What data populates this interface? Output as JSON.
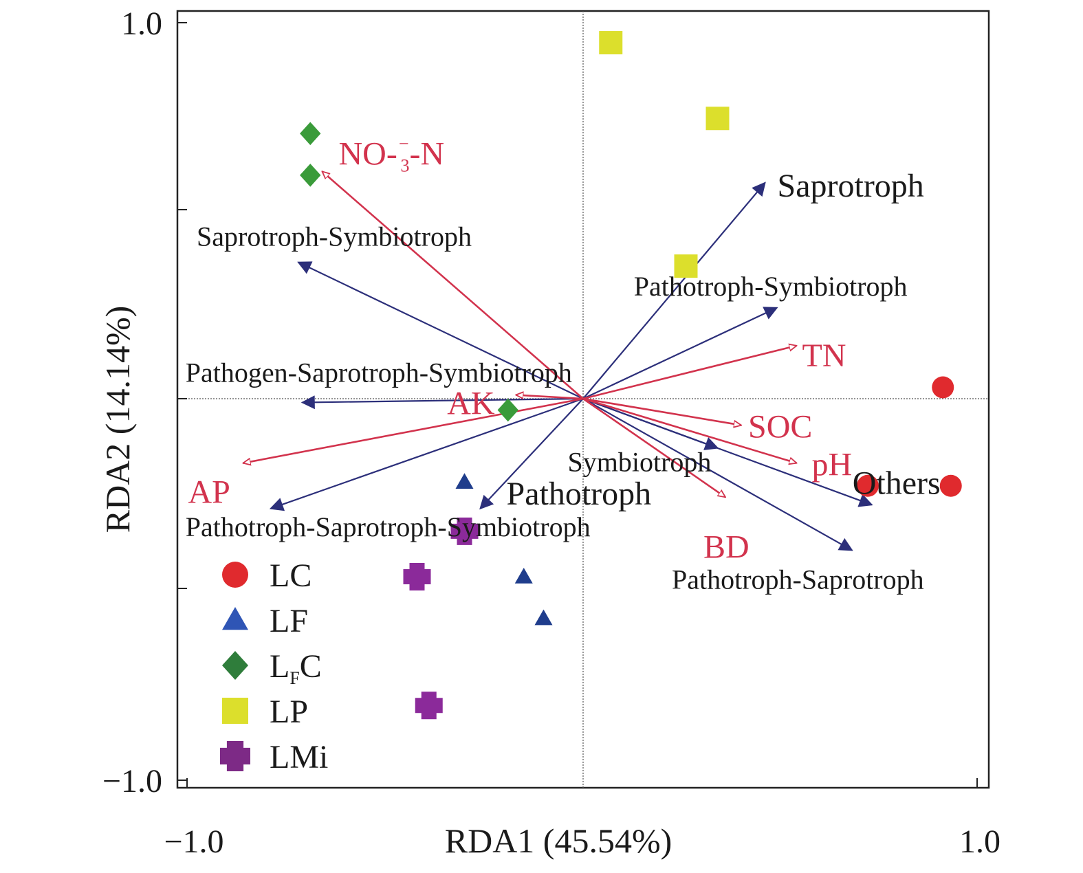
{
  "chart_data": {
    "type": "scatter",
    "subtype": "RDA biplot",
    "xlabel": "RDA1 (45.54%)",
    "ylabel": "RDA2 (14.14%)",
    "xlim": [
      -1.0,
      1.0
    ],
    "ylim": [
      -1.0,
      1.0
    ],
    "x_tick_labels": [
      "−1.0",
      "1.0"
    ],
    "y_tick_labels": [
      "1.0",
      "−1.0"
    ],
    "grid": false,
    "zero_lines": true,
    "legend_position": "bottom-left",
    "series": [
      {
        "name": "LC",
        "marker": "circle",
        "color": "#e02a2e",
        "points": [
          [
            0.91,
            0.03
          ],
          [
            0.72,
            -0.23
          ],
          [
            0.93,
            -0.23
          ]
        ]
      },
      {
        "name": "LF",
        "marker": "triangle",
        "color": "#1f3d8c",
        "points": [
          [
            -0.3,
            -0.22
          ],
          [
            -0.15,
            -0.47
          ],
          [
            -0.1,
            -0.58
          ]
        ]
      },
      {
        "name": "LFC",
        "marker": "diamond",
        "color": "#3a9b3a",
        "points": [
          [
            -0.69,
            0.7
          ],
          [
            -0.69,
            0.59
          ],
          [
            -0.19,
            -0.03
          ]
        ]
      },
      {
        "name": "LP",
        "marker": "square",
        "color": "#dcdf2c",
        "points": [
          [
            0.07,
            0.94
          ],
          [
            0.34,
            0.74
          ],
          [
            0.26,
            0.35
          ]
        ]
      },
      {
        "name": "LMi",
        "marker": "plus",
        "color": "#8b2a9a",
        "points": [
          [
            -0.3,
            -0.35
          ],
          [
            -0.42,
            -0.47
          ],
          [
            -0.39,
            -0.81
          ]
        ]
      }
    ],
    "env_vectors": [
      {
        "label": "NO3-",
        "label_sub": "3",
        "label_sup": "−",
        "label_suffix": "-N",
        "x": -0.66,
        "y": 0.6
      },
      {
        "label": "TN",
        "x": 0.54,
        "y": 0.14
      },
      {
        "label": "SOC",
        "x": 0.4,
        "y": -0.07
      },
      {
        "label": "pH",
        "x": 0.54,
        "y": -0.17
      },
      {
        "label": "BD",
        "x": 0.36,
        "y": -0.26
      },
      {
        "label": "AK",
        "x": -0.17,
        "y": 0.01
      },
      {
        "label": "AP",
        "x": -0.86,
        "y": -0.17
      }
    ],
    "function_vectors": [
      {
        "label": "Saprotroph",
        "x": 0.46,
        "y": 0.57,
        "emphasis": true
      },
      {
        "label": "Pathotroph-Symbiotroph",
        "x": 0.49,
        "y": 0.24
      },
      {
        "label": "Saprotroph-Symbiotroph",
        "x": -0.72,
        "y": 0.36
      },
      {
        "label": "Pathogen-Saprotroph-Symbiotroph",
        "x": -0.71,
        "y": -0.01
      },
      {
        "label": "Pathotroph-Saprotroph-Symbiotroph",
        "x": -0.79,
        "y": -0.29
      },
      {
        "label": "Pathotroph",
        "x": -0.26,
        "y": -0.29,
        "emphasis": true
      },
      {
        "label": "Symbiotroph",
        "x": 0.34,
        "y": -0.13
      },
      {
        "label": "Others",
        "x": 0.73,
        "y": -0.28,
        "emphasis": true
      },
      {
        "label": "Pathotroph-Saprotroph",
        "x": 0.68,
        "y": -0.4
      }
    ],
    "legend": [
      {
        "label": "LC",
        "marker": "circle",
        "color": "#e02a2e"
      },
      {
        "label": "LF",
        "marker": "triangle",
        "color": "#2f55b5"
      },
      {
        "label": "LFC",
        "main": "L",
        "sub": "F",
        "tail": "C",
        "marker": "diamond",
        "color": "#2f7d3b"
      },
      {
        "label": "LP",
        "marker": "square",
        "color": "#dcdf2c"
      },
      {
        "label": "LMi",
        "marker": "plus",
        "color": "#7d2a86"
      }
    ],
    "colors": {
      "env_vector": "#d2334d",
      "function_vector": "#2c2f7a",
      "axes": "#222222"
    }
  }
}
